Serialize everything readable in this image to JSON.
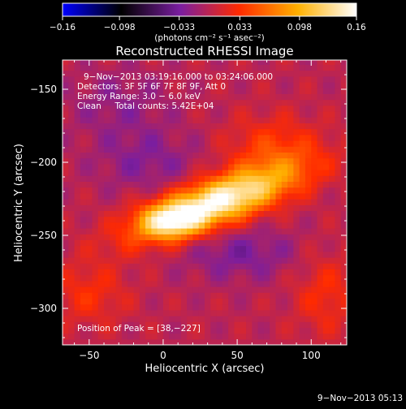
{
  "chart_data": {
    "type": "heatmap",
    "title": "Reconstructed RHESSI Image",
    "xlabel": "Heliocentric X (arcsec)",
    "ylabel": "Heliocentric Y (arcsec)",
    "xlim": [
      -68,
      124
    ],
    "ylim": [
      -325,
      -130
    ],
    "x_ticks": [
      -50,
      0,
      50,
      100
    ],
    "y_ticks": [
      -150,
      -200,
      -250,
      -300
    ],
    "x_tick_labels": [
      "−50",
      "0",
      "50",
      "100"
    ],
    "y_tick_labels": [
      "−150",
      "−200",
      "−250",
      "−300"
    ],
    "colorbar": {
      "min": -0.16,
      "max": 0.16,
      "ticks": [
        -0.16,
        -0.098,
        -0.033,
        0.033,
        0.098,
        0.16
      ],
      "tick_labels": [
        "−0.16",
        "−0.098",
        "−0.033",
        "0.033",
        "0.098",
        "0.16"
      ],
      "unit_label": "(photons cm⁻² s⁻¹ asec⁻²)",
      "colormap": [
        "#0000ff",
        "#000000",
        "#7a1ea0",
        "#ff2a00",
        "#ffb000",
        "#ffffff"
      ]
    },
    "annotations": [
      "9−Nov−2013 03:19:16.000 to 03:24:06.000",
      "Detectors: 3F 5F 6F 7F 8F 9F, Att 0",
      "Energy Range: 3.0 − 6.0 keV",
      "Clean     Total counts: 5.42E+04"
    ],
    "peak_label": "Position of Peak = [38,−227]",
    "peak_position": [
      38,
      -227
    ],
    "timestamp": "9−Nov−2013 05:13",
    "source_model": {
      "main": {
        "x": 36,
        "y": -227,
        "sx": 38,
        "sy": 11,
        "angle_deg": 20,
        "amp": 0.16
      },
      "plateau": {
        "x": 5,
        "y": -240,
        "sx": 14,
        "sy": 8,
        "amp": 0.08
      },
      "negative_lobes": [
        {
          "x": 52,
          "y": -262,
          "sx": 28,
          "sy": 13,
          "amp": -0.03
        },
        {
          "x": -10,
          "y": -200,
          "sx": 25,
          "sy": 15,
          "amp": -0.025
        },
        {
          "x": -30,
          "y": -160,
          "sx": 25,
          "sy": 18,
          "amp": -0.02
        }
      ],
      "positive_lobes": [
        {
          "x": 75,
          "y": -190,
          "sx": 22,
          "sy": 15,
          "amp": 0.04
        },
        {
          "x": -50,
          "y": -290,
          "sx": 18,
          "sy": 15,
          "amp": 0.03
        },
        {
          "x": 110,
          "y": -290,
          "sx": 15,
          "sy": 20,
          "amp": 0.03
        }
      ]
    }
  }
}
